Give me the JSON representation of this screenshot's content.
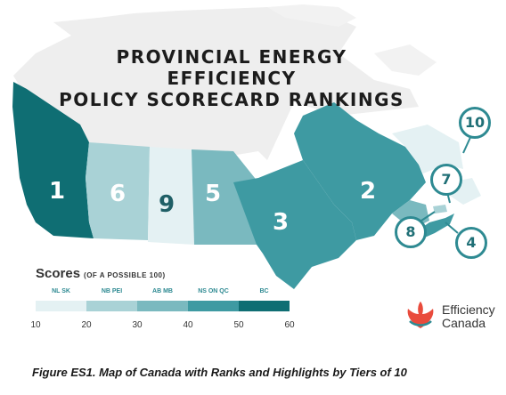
{
  "title_line1": "PROVINCIAL ENERGY EFFICIENCY",
  "title_line2": "POLICY SCORECARD RANKINGS",
  "colors": {
    "tier_10_20": "#e4f1f3",
    "tier_20_30": "#a9d2d6",
    "tier_30_40": "#7ab9bf",
    "tier_40_50": "#3e9aa2",
    "tier_50_60": "#0f6e73",
    "territories": "#eeeeee"
  },
  "regions": [
    {
      "name": "BC",
      "rank": "1"
    },
    {
      "name": "AB",
      "rank": "6"
    },
    {
      "name": "SK",
      "rank": "9"
    },
    {
      "name": "MB",
      "rank": "5"
    },
    {
      "name": "ON",
      "rank": "3"
    },
    {
      "name": "QC",
      "rank": "2"
    },
    {
      "name": "NL",
      "rank": "10"
    },
    {
      "name": "NB",
      "rank": "7"
    },
    {
      "name": "PEI",
      "rank": "8"
    },
    {
      "name": "NS",
      "rank": "4"
    }
  ],
  "legend": {
    "title": "Scores",
    "subtitle": "(OF A POSSIBLE 100)",
    "categories": [
      "NL SK",
      "NB PEI",
      "AB MB",
      "NS ON QC",
      "BC"
    ],
    "ticks": [
      "10",
      "20",
      "30",
      "40",
      "50",
      "60"
    ]
  },
  "logo": {
    "line1": "Efficiency",
    "line2": "Canada"
  },
  "caption": "Figure ES1. Map of Canada with Ranks and Highlights by Tiers of 10"
}
